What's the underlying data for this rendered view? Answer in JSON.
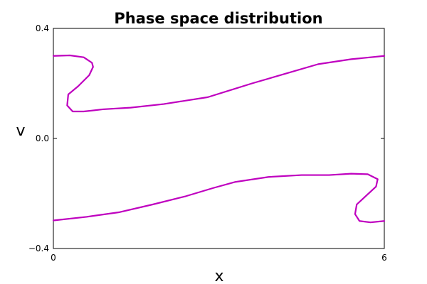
{
  "chart_data": {
    "type": "line",
    "title": "Phase space distribution",
    "xlabel": "x",
    "ylabel": "v",
    "xlim": [
      0,
      6
    ],
    "ylim": [
      -0.4,
      0.4
    ],
    "xticks": [
      0,
      6
    ],
    "xtick_labels": [
      "0",
      "6"
    ],
    "yticks": [
      0.4,
      0.0,
      -0.4
    ],
    "ytick_labels": [
      "0.4",
      "0.0",
      "−0.4"
    ],
    "grid": false,
    "series": [
      {
        "color": "#bf00bf",
        "x": [
          0.0,
          0.3,
          0.55,
          0.7,
          0.72,
          0.65,
          0.45,
          0.27,
          0.25,
          0.35,
          0.55,
          0.9,
          1.4,
          2.0,
          2.8,
          3.6,
          4.2,
          4.8,
          5.4,
          6.0
        ],
        "y": [
          0.3,
          0.302,
          0.295,
          0.275,
          0.26,
          0.23,
          0.19,
          0.16,
          0.12,
          0.098,
          0.098,
          0.106,
          0.112,
          0.125,
          0.15,
          0.2,
          0.235,
          0.27,
          0.288,
          0.3
        ]
      },
      {
        "color": "#bf00bf",
        "x": [
          0.0,
          0.6,
          1.2,
          1.8,
          2.4,
          2.9,
          3.3,
          3.9,
          4.5,
          5.0,
          5.4,
          5.7,
          5.88,
          5.85,
          5.65,
          5.5,
          5.47,
          5.55,
          5.75,
          6.0
        ],
        "y": [
          -0.298,
          -0.285,
          -0.268,
          -0.24,
          -0.21,
          -0.18,
          -0.158,
          -0.14,
          -0.133,
          -0.133,
          -0.128,
          -0.13,
          -0.148,
          -0.175,
          -0.212,
          -0.24,
          -0.275,
          -0.3,
          -0.305,
          -0.3
        ]
      }
    ]
  }
}
